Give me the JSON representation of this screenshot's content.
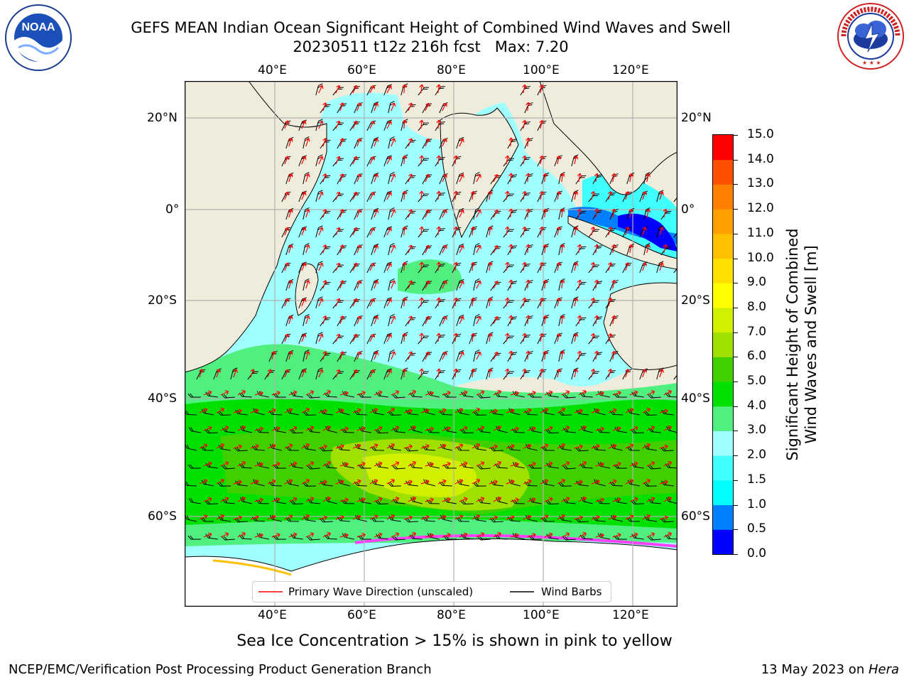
{
  "header": {
    "title_line1": "GEFS MEAN Indian Ocean Significant Height of Combined Wind Waves and Swell",
    "title_line2": "20230511 t12z 216h fcst   Max: 7.20"
  },
  "logos": {
    "left": {
      "name": "noaa-logo",
      "text": "NOAA",
      "ring_text": "NATIONAL OCEANIC AND ATMOSPHERIC ADMINISTRATION · U.S. DEPARTMENT OF COMMERCE"
    },
    "right": {
      "name": "nws-logo",
      "ring_text": "NATIONAL WEATHER SERVICE"
    }
  },
  "map": {
    "lon_ticks": [
      "40°E",
      "60°E",
      "80°E",
      "100°E",
      "120°E"
    ],
    "lat_ticks": [
      "20°N",
      "0°",
      "20°S",
      "40°S",
      "60°S"
    ],
    "colors": {
      "land": "#efecdc",
      "sea_ice": "#ffffff",
      "wind_barb": "#000000",
      "wave_arrow": "#ff0000",
      "gridline": "#b0b0b0"
    }
  },
  "legend": {
    "wave_direction": "Primary Wave Direction (unscaled)",
    "wind_barbs": "Wind Barbs"
  },
  "colorbar": {
    "label_line1": "Significant Height of Combined",
    "label_line2": "Wind Waves and Swell [m]",
    "ticks": [
      "0.0",
      "0.5",
      "1.0",
      "1.5",
      "2.0",
      "3.0",
      "4.0",
      "5.0",
      "6.0",
      "7.0",
      "8.0",
      "9.0",
      "10.0",
      "11.0",
      "12.0",
      "13.0",
      "14.0",
      "15.0"
    ],
    "colors": [
      "#0000ff",
      "#0080ff",
      "#00ffff",
      "#40ffff",
      "#a0ffff",
      "#50f080",
      "#00e000",
      "#40d000",
      "#a0e000",
      "#d0f000",
      "#ffff00",
      "#ffe000",
      "#ffc000",
      "#ffa000",
      "#ff8000",
      "#ff5000",
      "#ff0000"
    ]
  },
  "footer": {
    "subtitle": "Sea Ice Concentration > 15% is shown in pink to yellow",
    "credit_left": "NCEP/EMC/Verification Post Processing Product Generation Branch",
    "credit_right_date": "13 May 2023 on ",
    "credit_right_host": "Hera"
  }
}
